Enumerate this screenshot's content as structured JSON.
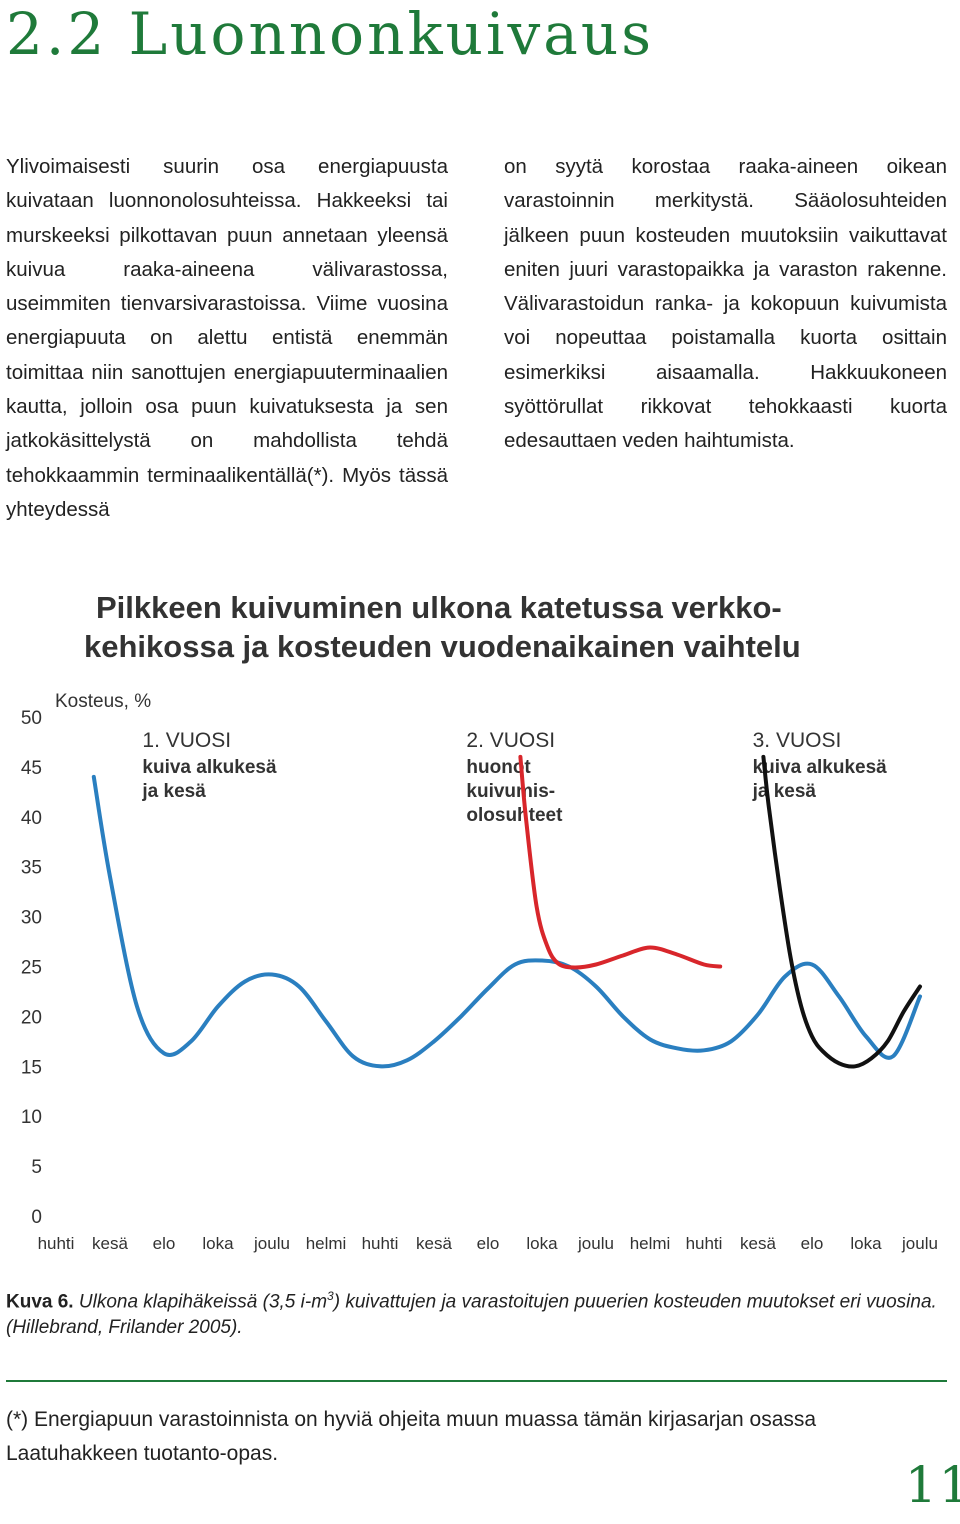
{
  "section_heading": "2.2 Luonnonkuivaus",
  "left_column_text": "Ylivoimaisesti suurin osa energiapuusta kuivataan luonnonolosuhteissa. Hakkeeksi tai murskeeksi pilkottavan puun annetaan yleensä kuivua raaka-aineena välivarastossa, useimmiten tienvarsivarastoissa. Viime vuosina energiapuuta on alettu entistä enemmän toimittaa niin sanottujen energiapuuterminaalien kautta, jolloin osa puun kuivatuksesta ja sen jatkokäsittelystä on mahdollista tehdä tehokkaammin terminaalikentällä(*). Myös tässä yhteydessä",
  "right_column_text": "on syytä korostaa raaka-aineen oikean varastoinnin merkitystä. Sääolosuhteiden jälkeen puun kosteuden muutoksiin vaikuttavat eniten juuri varastopaikka ja varaston rakenne. Välivarastoidun ranka- ja kokopuun kuivumista voi nopeuttaa poistamalla kuorta osittain esimerkiksi aisaamalla. Hakkuukoneen syöttörullat rikkovat tehokkaasti kuorta edesauttaen veden haihtumista.",
  "caption": {
    "label": "Kuva 6.",
    "text_before_sup": " Ulkona klapihäkeissä (3,5 i-m",
    "sup": "3",
    "text_after_sup": ") kuivattujen ja varastoitujen puuerien kosteuden muutokset eri vuosina. (Hillebrand, Frilander 2005)."
  },
  "footnote": "(*) Energiapuun varastoinnista on hyviä ohjeita muun muassa tämän kirjasarjan osassa Laatuhakkeen tuotanto-opas.",
  "page_number": "11",
  "colors": {
    "accent_green": "#1f7a3a",
    "blue": "#2a7fc0",
    "red": "#d8262b",
    "black": "#111111"
  },
  "chart_data": {
    "type": "line",
    "title_line1": "Pilkkeen kuivuminen ulkona katetussa verkko-",
    "title_line2": "kehikossa ja kosteuden vuodenaikainen vaihtelu",
    "ylabel": "Kosteus, %",
    "ylim": [
      0,
      50
    ],
    "yticks": [
      0,
      5,
      10,
      15,
      20,
      25,
      30,
      35,
      40,
      45,
      50
    ],
    "categories": [
      "huhti",
      "kesä",
      "elo",
      "loka",
      "joulu",
      "helmi",
      "huhti",
      "kesä",
      "elo",
      "loka",
      "joulu",
      "helmi",
      "huhti",
      "kesä",
      "elo",
      "loka",
      "joulu"
    ],
    "annotations": [
      {
        "lines": [
          "1. VUOSI",
          "kuiva alkukesä",
          "ja kesä"
        ],
        "x": 1.6,
        "y": 47
      },
      {
        "lines": [
          "2. VUOSI",
          "huonot",
          "kuivumis-",
          "olosuhteet"
        ],
        "x": 7.6,
        "y": 47
      },
      {
        "lines": [
          "3. VUOSI",
          "kuiva alkukesä",
          "ja kesä"
        ],
        "x": 12.9,
        "y": 47
      }
    ],
    "series": [
      {
        "color": "#2a7fc0",
        "x": [
          0.7,
          1.0,
          1.5,
          2.0,
          2.5,
          3.0,
          3.5,
          4.0,
          4.5,
          5.0,
          5.5,
          6.0,
          6.5,
          7.0,
          7.5,
          8.0,
          8.5,
          9.0,
          9.5,
          10.0,
          10.5,
          11.0,
          11.5,
          12.0,
          12.5,
          13.0,
          13.5,
          14.0,
          14.5,
          15.0,
          15.5,
          16.0
        ],
        "y": [
          44,
          34,
          21,
          16.3,
          17.5,
          21,
          23.5,
          24.2,
          23,
          19.5,
          16,
          15,
          15.6,
          17.5,
          20,
          22.8,
          25.2,
          25.6,
          25,
          23,
          20,
          17.7,
          16.8,
          16.6,
          17.5,
          20.2,
          24,
          25.2,
          22,
          18,
          16,
          22
        ]
      },
      {
        "color": "#d8262b",
        "x": [
          8.6,
          8.7,
          8.9,
          9.1,
          9.3,
          9.6,
          10.0,
          10.5,
          11.0,
          11.5,
          12.0,
          12.3
        ],
        "y": [
          46,
          40,
          31,
          27,
          25.3,
          24.9,
          25.2,
          26.1,
          26.9,
          26.2,
          25.2,
          25
        ]
      },
      {
        "color": "#111111",
        "x": [
          13.1,
          13.2,
          13.4,
          13.6,
          13.8,
          14.0,
          14.2,
          14.5,
          14.8,
          15.1,
          15.4,
          15.7,
          16.0
        ],
        "y": [
          46,
          41,
          33,
          26,
          21,
          18,
          16.5,
          15.3,
          15,
          15.8,
          17.5,
          20.5,
          23
        ]
      }
    ]
  }
}
